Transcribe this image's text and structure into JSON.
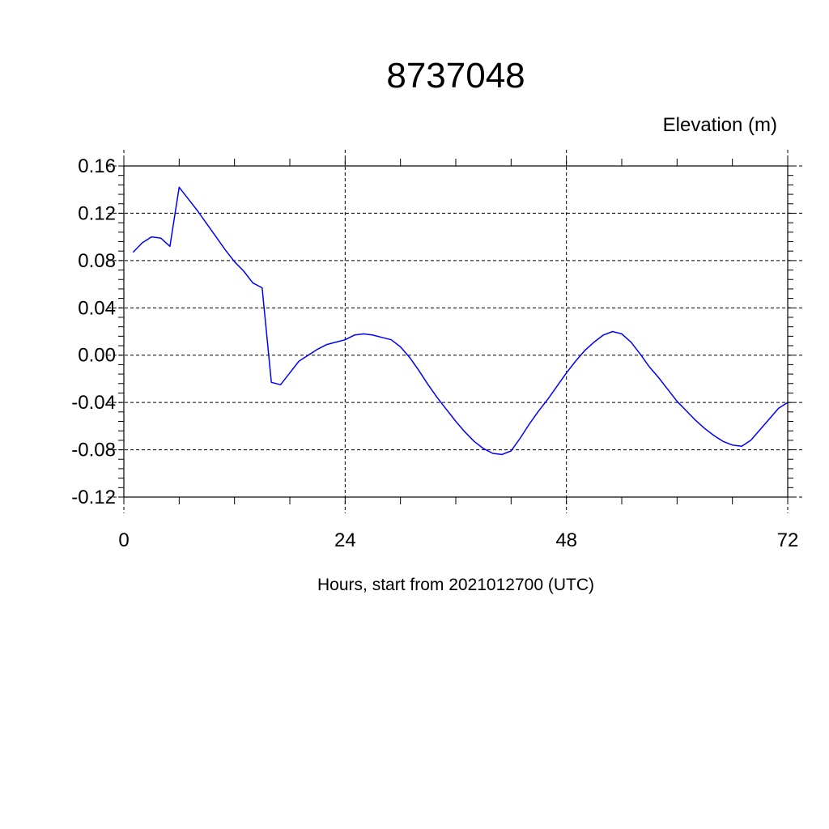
{
  "chart_data": {
    "type": "line",
    "title": "8737048",
    "ylabel": "Elevation (m)",
    "xlabel": "Hours, start from 2021012700 (UTC)",
    "xlim": [
      0,
      72
    ],
    "ylim": [
      -0.12,
      0.16
    ],
    "xticks": [
      0,
      24,
      48,
      72
    ],
    "xtick_labels": [
      "0",
      "24",
      "48",
      "72"
    ],
    "yticks": [
      -0.12,
      -0.08,
      -0.04,
      0.0,
      0.04,
      0.08,
      0.12,
      0.16
    ],
    "ytick_labels": [
      "-0.12",
      "-0.08",
      "-0.04",
      "0.00",
      "0.04",
      "0.08",
      "0.12",
      "0.16"
    ],
    "grid": true,
    "series": [
      {
        "color": "#0000ff",
        "x": [
          1,
          2,
          3,
          4,
          5,
          6,
          7,
          8,
          9,
          10,
          11,
          12,
          13,
          14,
          15,
          16,
          17,
          18,
          19,
          20,
          21,
          22,
          23,
          24,
          25,
          26,
          27,
          28,
          29,
          30,
          31,
          32,
          33,
          34,
          35,
          36,
          37,
          38,
          39,
          40,
          41,
          42,
          43,
          44,
          45,
          46,
          47,
          48,
          49,
          50,
          51,
          52,
          53,
          54,
          55,
          56,
          57,
          58,
          59,
          60,
          61,
          62,
          63,
          64,
          65,
          66,
          67,
          68,
          69,
          70,
          71,
          72
        ],
        "values": [
          0.087,
          0.095,
          0.1,
          0.099,
          0.092,
          0.142,
          0.132,
          0.122,
          0.111,
          0.1,
          0.089,
          0.079,
          0.071,
          0.061,
          0.057,
          -0.023,
          -0.025,
          -0.015,
          -0.005,
          0.0,
          0.005,
          0.009,
          0.011,
          0.013,
          0.017,
          0.018,
          0.017,
          0.015,
          0.013,
          0.007,
          -0.002,
          -0.013,
          -0.025,
          -0.036,
          -0.046,
          -0.056,
          -0.065,
          -0.073,
          -0.079,
          -0.083,
          -0.084,
          -0.081,
          -0.07,
          -0.058,
          -0.047,
          -0.037,
          -0.026,
          -0.015,
          -0.005,
          0.004,
          0.011,
          0.017,
          0.02,
          0.018,
          0.011,
          0.001,
          -0.01,
          -0.019,
          -0.029,
          -0.039,
          -0.047,
          -0.055,
          -0.062,
          -0.068,
          -0.073,
          -0.076,
          -0.077,
          -0.072,
          -0.063,
          -0.054,
          -0.045,
          -0.04
        ]
      }
    ]
  }
}
